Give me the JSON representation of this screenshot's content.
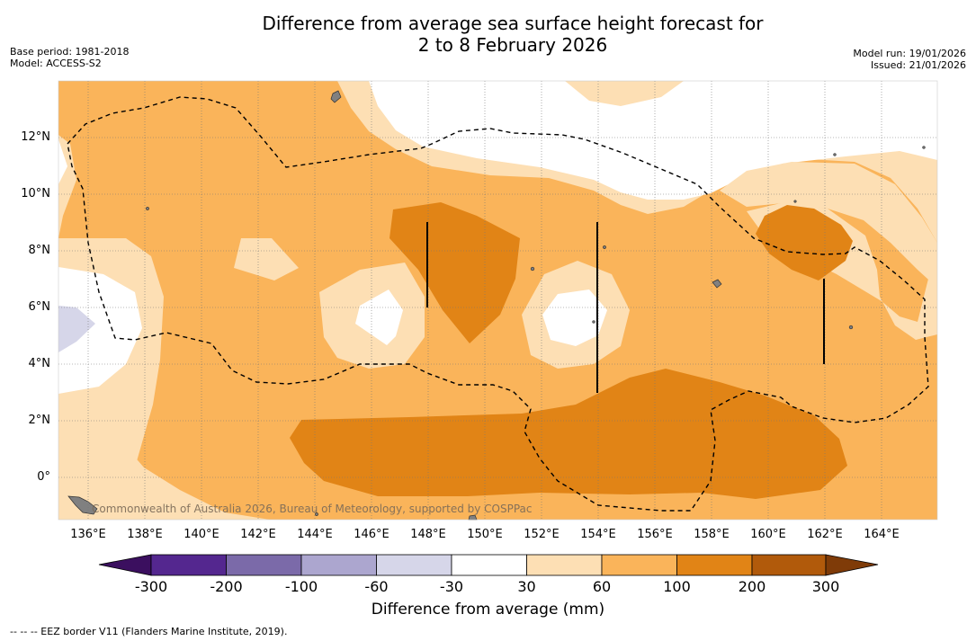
{
  "title_line1": "Difference from average sea surface height forecast for",
  "title_line2": "2 to 8 February 2026",
  "base_period": "Base period: 1981-2018",
  "model": "Model: ACCESS-S2",
  "model_run": "Model run: 19/01/2026",
  "issued": "Issued: 21/01/2026",
  "credit": "Commonwealth of Australia 2026, Bureau of Meteorology, supported by COSPPac",
  "footnote": "-- -- -- EEZ border V11 (Flanders Marine Institute, 2019).",
  "lat_labels": [
    "12°N",
    "10°N",
    "8°N",
    "6°N",
    "4°N",
    "2°N",
    "0°"
  ],
  "lon_labels": [
    "136°E",
    "138°E",
    "140°E",
    "142°E",
    "144°E",
    "146°E",
    "148°E",
    "150°E",
    "152°E",
    "154°E",
    "156°E",
    "158°E",
    "160°E",
    "162°E",
    "164°E"
  ],
  "colorbar": {
    "title": "Difference from average (mm)",
    "ticks": [
      "-300",
      "-200",
      "-100",
      "-60",
      "-30",
      "30",
      "60",
      "100",
      "200",
      "300"
    ],
    "colors": [
      "#3b0f5f",
      "#54278f",
      "#7b6aa9",
      "#aca6cf",
      "#d6d6e9",
      "#ffffff",
      "#fddfb4",
      "#fab45a",
      "#e18416",
      "#b15a0b",
      "#7f3b08"
    ]
  },
  "map_colors": {
    "level_30_60": "#fddfb4",
    "level_60_100": "#fab45a",
    "level_100_200": "#e18416",
    "level_neg30_neg60": "#d6d6e9",
    "neutral": "#ffffff",
    "land": "#808080"
  }
}
